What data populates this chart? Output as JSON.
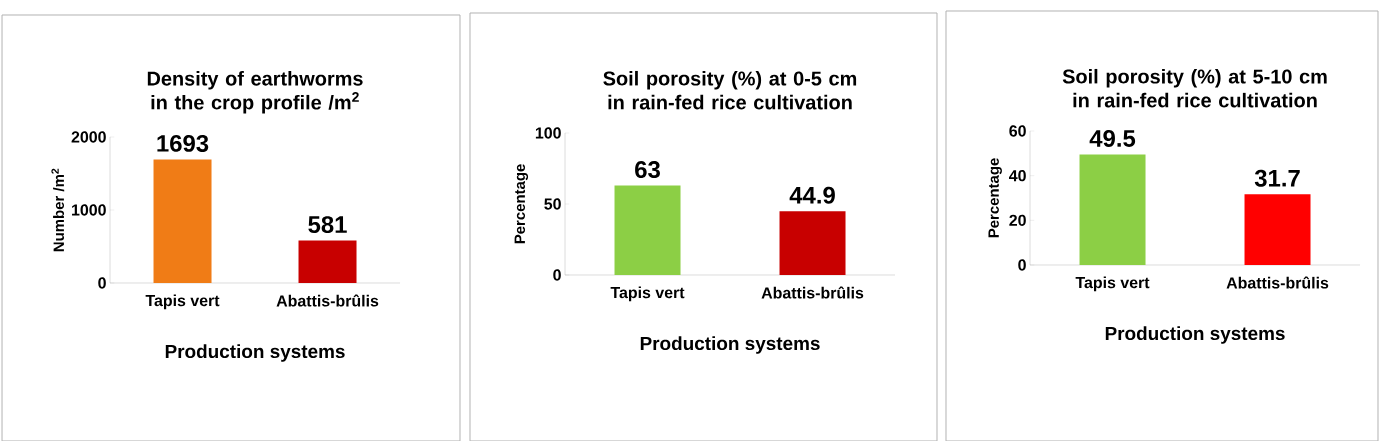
{
  "chart_data": [
    {
      "type": "bar",
      "title": "Density of earthworms in the crop profile /m$^{2}$",
      "xlabel": "Production systems",
      "ylabel": "Number /m$^{2}$",
      "categories": [
        "Tapis vert",
        "Abattis-brûlis"
      ],
      "values": [
        1693,
        581
      ],
      "colors": [
        "#f07c16",
        "#c80000"
      ],
      "ylim": [
        0,
        2000
      ],
      "yticks": [
        0,
        1000,
        2000
      ],
      "data_labels": true
    },
    {
      "type": "bar",
      "title": "Soil porosity (%) at 0-5 cm in rain-fed rice cultivation",
      "xlabel": "Production systems",
      "ylabel": "Percentage",
      "categories": [
        "Tapis vert",
        "Abattis-brûlis"
      ],
      "values": [
        63,
        44.9
      ],
      "colors": [
        "#8ccf45",
        "#c80000"
      ],
      "ylim": [
        0,
        100
      ],
      "yticks": [
        0,
        50,
        100
      ],
      "data_labels": true
    },
    {
      "type": "bar",
      "title": "Soil porosity (%) at 5-10 cm in rain-fed rice cultivation",
      "xlabel": "Production systems",
      "ylabel": "Percentage",
      "categories": [
        "Tapis vert",
        "Abattis-brûlis"
      ],
      "values": [
        49.5,
        31.7
      ],
      "colors": [
        "#8ccf45",
        "#ff0000"
      ],
      "ylim": [
        0,
        60
      ],
      "yticks": [
        0,
        20,
        40,
        60
      ],
      "data_labels": true
    }
  ]
}
